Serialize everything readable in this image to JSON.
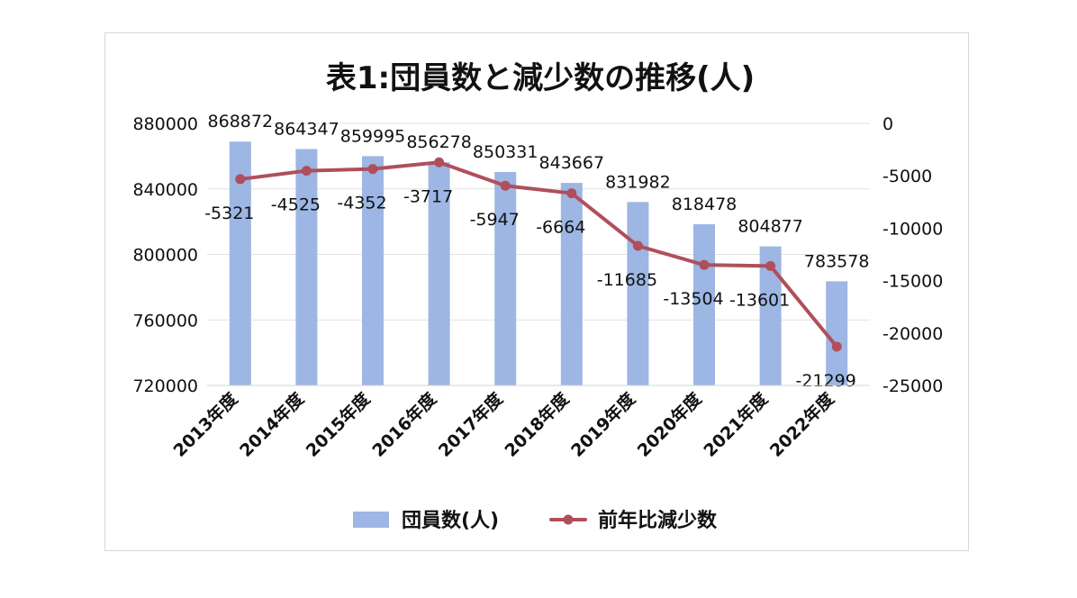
{
  "chart_data": {
    "type": "bar",
    "title": "表1:団員数と減少数の推移(人)",
    "categories": [
      "2013年度",
      "2014年度",
      "2015年度",
      "2016年度",
      "2017年度",
      "2018年度",
      "2019年度",
      "2020年度",
      "2021年度",
      "2022年度"
    ],
    "series": [
      {
        "name": "団員数(人)",
        "type": "bar",
        "axis": "left",
        "values": [
          868872,
          864347,
          859995,
          856278,
          850331,
          843667,
          831982,
          818478,
          804877,
          783578
        ],
        "labels": [
          "868872",
          "864347",
          "859995",
          "856278",
          "850331",
          "843667",
          "831982",
          "818478",
          "804877",
          "783578"
        ],
        "color": "#9db6e3"
      },
      {
        "name": "前年比減少数",
        "type": "line",
        "axis": "right",
        "values": [
          -5321,
          -4525,
          -4352,
          -3717,
          -5947,
          -6664,
          -11685,
          -13504,
          -13601,
          -21299
        ],
        "labels": [
          "-5321",
          "-4525",
          "-4352",
          "-3717",
          "-5947",
          "-6664",
          "-11685",
          "-13504",
          "-13601",
          "-21299"
        ],
        "color": "#b04f5b"
      }
    ],
    "y_left": {
      "min": 720000,
      "max": 880000,
      "ticks": [
        "880000",
        "840000",
        "800000",
        "760000",
        "720000"
      ],
      "tick_values": [
        880000,
        840000,
        800000,
        760000,
        720000
      ]
    },
    "y_right": {
      "min": -25000,
      "max": 0,
      "ticks": [
        "0",
        "-5000",
        "-10000",
        "-15000",
        "-20000",
        "-25000"
      ],
      "tick_values": [
        0,
        -5000,
        -10000,
        -15000,
        -20000,
        -25000
      ]
    },
    "grid": "horizontal",
    "legend": "bottom"
  }
}
